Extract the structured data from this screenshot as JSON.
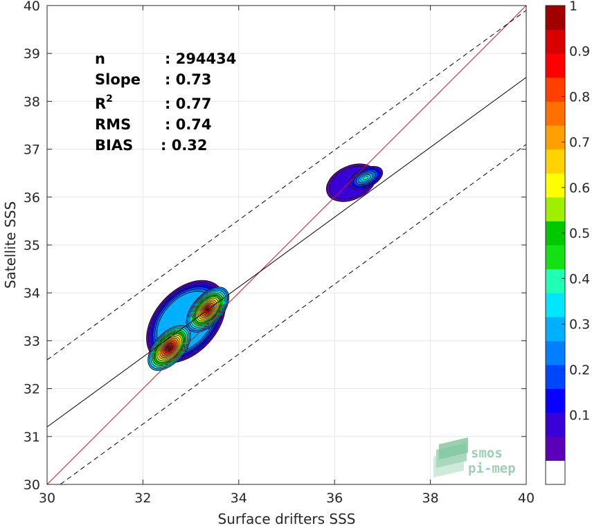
{
  "chart_data": {
    "type": "contour",
    "xlabel": "Surface drifters SSS",
    "ylabel": "Satellite SSS",
    "xlim": [
      30,
      40
    ],
    "ylim": [
      30,
      40
    ],
    "xticks": [
      "30",
      "32",
      "34",
      "36",
      "38",
      "40"
    ],
    "yticks": [
      "30",
      "31",
      "32",
      "33",
      "34",
      "35",
      "36",
      "37",
      "38",
      "39",
      "40"
    ],
    "grid": true,
    "stats": [
      {
        "name": "n",
        "sep": ": ",
        "value": "294434"
      },
      {
        "name": "Slope",
        "sep": ": ",
        "value": "0.73"
      },
      {
        "name": "R",
        "sup": "2",
        "sep": ": ",
        "value": "0.77"
      },
      {
        "name": "RMS",
        "sep": ": ",
        "value": "0.74"
      },
      {
        "name": "BIAS",
        "sep": ": ",
        "value": "0.32"
      }
    ],
    "lines": [
      {
        "kind": "identity",
        "color": "#ff0000",
        "slope": 1,
        "intercept": 0,
        "dash": false
      },
      {
        "kind": "regression",
        "color": "#000000",
        "slope": 0.73,
        "intercept": 9.3,
        "dash": false
      },
      {
        "kind": "upper-bound",
        "color": "#000000",
        "slope": 0.73,
        "intercept": 10.7,
        "dash": true
      },
      {
        "kind": "lower-bound",
        "color": "#000000",
        "slope": 0.73,
        "intercept": 7.9,
        "dash": true
      }
    ],
    "density_clusters": [
      {
        "cx": 32.9,
        "cy": 33.4,
        "rx": 1.0,
        "ry": 0.65,
        "angle": 48,
        "peaks": [
          {
            "x": 32.55,
            "y": 32.85,
            "value": 1.0
          },
          {
            "x": 33.35,
            "y": 33.65,
            "value": 0.97
          }
        ]
      },
      {
        "cx": 36.35,
        "cy": 36.3,
        "rx": 0.55,
        "ry": 0.35,
        "angle": 25,
        "peaks": [
          {
            "x": 36.65,
            "y": 36.4,
            "value": 0.42
          }
        ]
      }
    ],
    "colorbar": {
      "ticks": [
        "0.1",
        "0.2",
        "0.3",
        "0.4",
        "0.5",
        "0.6",
        "0.7",
        "0.8",
        "0.9",
        "1"
      ],
      "levels": [
        "#ffffff",
        "#5b00b8",
        "#3a00d8",
        "#0a00ff",
        "#0046ff",
        "#0080ff",
        "#00b0ff",
        "#00e6ff",
        "#20ffb4",
        "#14e014",
        "#00c800",
        "#9ff000",
        "#ffff00",
        "#ffd200",
        "#ffa000",
        "#ff7000",
        "#ff4000",
        "#ff0000",
        "#d80000",
        "#a00000"
      ]
    }
  },
  "watermark": {
    "line1": "smos",
    "line2": "pi-mep",
    "color": "#9ccfb3"
  }
}
